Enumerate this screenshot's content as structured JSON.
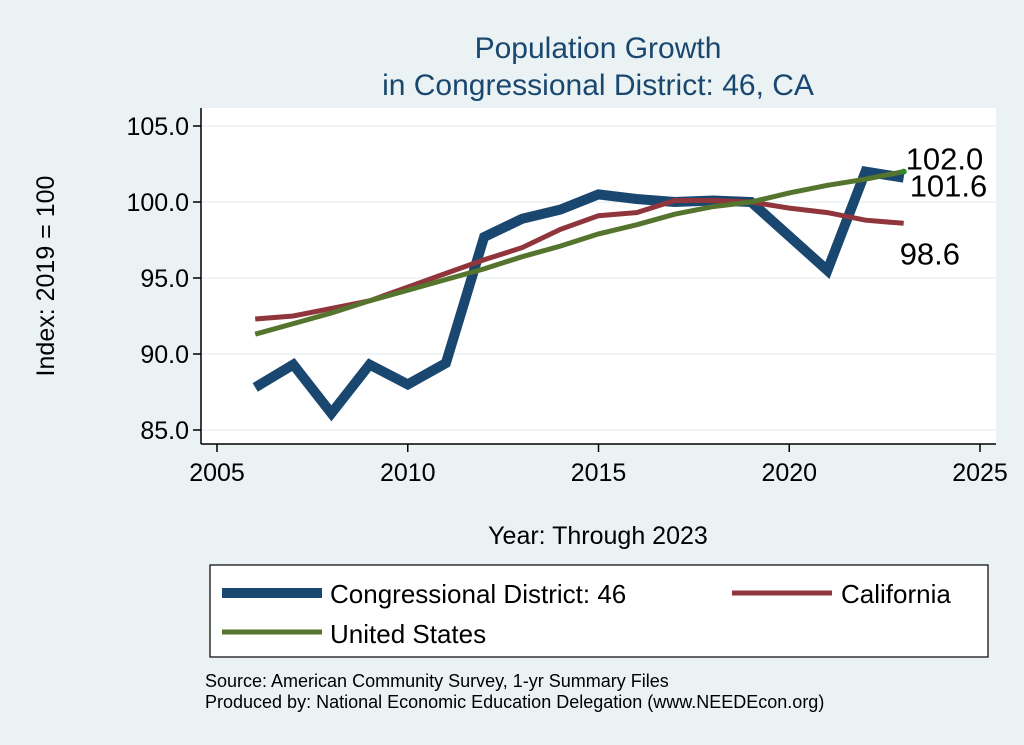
{
  "chart_data": {
    "type": "line",
    "title": [
      "Population Growth",
      "in Congressional District: 46, CA"
    ],
    "xlabel": "Year: Through 2023",
    "ylabel": "Index: 2019 = 100",
    "xlim": [
      2005,
      2025
    ],
    "ylim": [
      85,
      105
    ],
    "x_ticks": [
      2005,
      2010,
      2015,
      2020,
      2025
    ],
    "x_tick_labels": [
      "2005",
      "2010",
      "2015",
      "2020",
      "2025"
    ],
    "y_ticks": [
      85,
      90,
      95,
      100,
      105
    ],
    "y_tick_labels": [
      "85.0",
      "90.0",
      "95.0",
      "100.0",
      "105.0"
    ],
    "grid": true,
    "legend_position": "bottom",
    "series": [
      {
        "name": "Congressional District: 46",
        "color": "#1a476f",
        "x": [
          2006,
          2007,
          2008,
          2009,
          2010,
          2011,
          2012,
          2013,
          2014,
          2015,
          2016,
          2017,
          2018,
          2019,
          2021,
          2022,
          2023
        ],
        "values": [
          87.8,
          89.3,
          86.1,
          89.3,
          88.0,
          89.4,
          97.7,
          98.9,
          99.5,
          100.5,
          100.2,
          100.0,
          100.1,
          100.0,
          95.5,
          102.0,
          101.6
        ],
        "end_label": "101.6"
      },
      {
        "name": "California",
        "color": "#90353b",
        "x": [
          2006,
          2007,
          2008,
          2009,
          2010,
          2011,
          2012,
          2013,
          2014,
          2015,
          2016,
          2017,
          2018,
          2019,
          2020,
          2021,
          2022,
          2023
        ],
        "values": [
          92.3,
          92.5,
          93.0,
          93.5,
          94.4,
          95.3,
          96.2,
          97.0,
          98.2,
          99.1,
          99.3,
          100.1,
          100.1,
          100.0,
          99.6,
          99.3,
          98.8,
          98.6
        ],
        "end_label": "98.6"
      },
      {
        "name": "United States",
        "color": "#55752f",
        "x": [
          2006,
          2007,
          2008,
          2009,
          2010,
          2011,
          2012,
          2013,
          2014,
          2015,
          2016,
          2017,
          2018,
          2019,
          2020,
          2021,
          2022,
          2023
        ],
        "values": [
          91.3,
          92.0,
          92.7,
          93.5,
          94.2,
          94.9,
          95.6,
          96.4,
          97.1,
          97.9,
          98.5,
          99.2,
          99.7,
          100.0,
          100.6,
          101.1,
          101.5,
          102.0
        ],
        "end_label": "102.0"
      }
    ],
    "notes": [
      "Source: American Community Survey, 1-yr Summary Files",
      "Produced by: National Economic Education Delegation (www.NEEDEcon.org)"
    ]
  }
}
